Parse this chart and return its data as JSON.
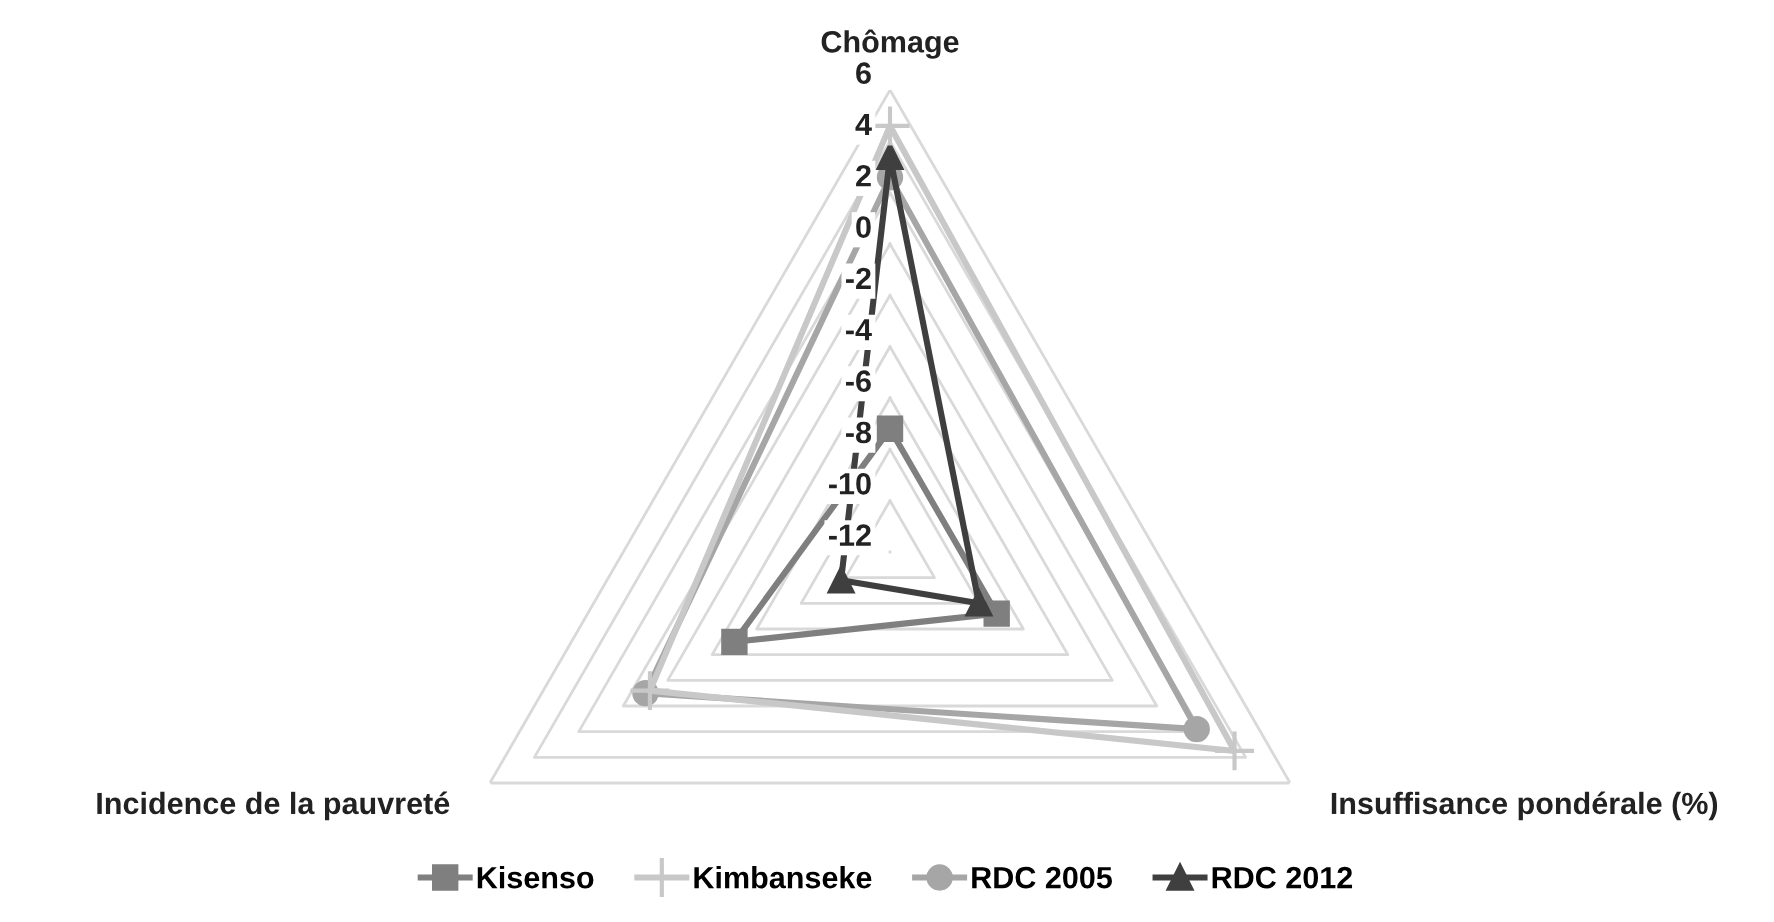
{
  "chart_data": {
    "type": "radar",
    "categories": [
      "Chômage",
      "Insuffisance pondérale (%)",
      "Incidence de la pauvreté"
    ],
    "ylim": [
      -12,
      6
    ],
    "yticks": [
      6,
      4,
      2,
      0,
      -2,
      -4,
      -6,
      -8,
      -10,
      -12
    ],
    "grid": true,
    "legend": "bottom",
    "series": [
      {
        "name": "Kisenso",
        "color": "#7f7f7f",
        "marker": "square",
        "values": [
          -7.2,
          -7.2,
          -5.0
        ]
      },
      {
        "name": "Kimbanseke",
        "color": "#c8c8c8",
        "marker": "cross",
        "values": [
          4.6,
          3.5,
          -1.2
        ]
      },
      {
        "name": "RDC 2005",
        "color": "#a6a6a6",
        "marker": "circle",
        "values": [
          2.6,
          1.8,
          -1.0
        ]
      },
      {
        "name": "RDC 2012",
        "color": "#3f3f3f",
        "marker": "triangle",
        "values": [
          3.4,
          -8.0,
          -9.8
        ]
      }
    ]
  }
}
